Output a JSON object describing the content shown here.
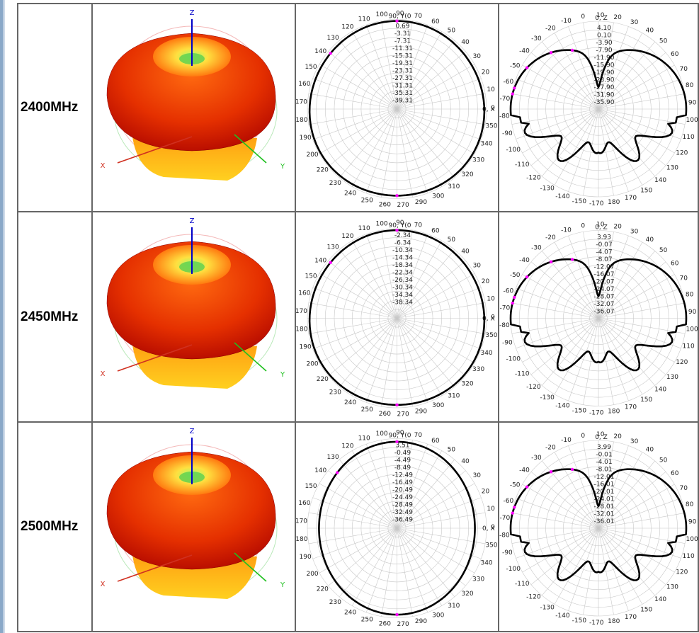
{
  "frequencies": [
    "2400MHz",
    "2450MHz",
    "2500MHz"
  ],
  "axis_letters": {
    "z": "Z",
    "x": "X",
    "y": "Y"
  },
  "colors": {
    "pattern_line": "#000000",
    "marker": "#ff00ff",
    "grid": "#c8c8c8",
    "lobe_dark": "#a80000",
    "lobe_mid": "#e53000",
    "lobe_light": "#ffd020",
    "z_axis": "#0000c8",
    "x_axis": "#d03020",
    "y_axis": "#20c020"
  },
  "chart_data": [
    {
      "type": "polar",
      "frequency": "2400MHz",
      "plane": "XY",
      "top_label": "90, Y(0",
      "side_label": "0, X",
      "angle_labels": [
        "110",
        "100",
        "90",
        "70",
        "60",
        "50",
        "40",
        "30",
        "20",
        "10",
        "0",
        "350",
        "340",
        "330",
        "320",
        "310",
        "300",
        "290",
        "270",
        "260",
        "250",
        "240",
        "230",
        "220",
        "200",
        "190",
        "180",
        "170",
        "160",
        "150",
        "140",
        "130",
        "120"
      ],
      "radial_labels": [
        "0.69",
        "-3.31",
        "-7.31",
        "-11.31",
        "-15.31",
        "-19.31",
        "-23.31",
        "-27.31",
        "-31.31",
        "-35.31",
        "-39.31"
      ],
      "pattern": "near-circular"
    },
    {
      "type": "polar",
      "frequency": "2400MHz",
      "plane": "XZ",
      "top_label": "0, Z",
      "angle_labels": [
        "-10",
        "0",
        "10",
        "20",
        "30",
        "40",
        "50",
        "60",
        "70",
        "80",
        "90",
        "100",
        "110",
        "120",
        "130",
        "140",
        "150",
        "170",
        "180",
        "-170",
        "-150",
        "-140",
        "-130",
        "-120",
        "-110",
        "-100",
        "-90",
        "-80",
        "-70",
        "-60",
        "-50",
        "-40",
        "-30",
        "-20"
      ],
      "radial_labels": [
        "4.10",
        "0.10",
        "-3.90",
        "-7.90",
        "-11.90",
        "-15.90",
        "-19.90",
        "-23.90",
        "-27.90",
        "-31.90",
        "-35.90"
      ],
      "pattern": "butterfly"
    },
    {
      "type": "polar",
      "frequency": "2450MHz",
      "plane": "XY",
      "top_label": "90, Y(0",
      "side_label": "0, X",
      "angle_labels": [
        "110",
        "100",
        "90",
        "70",
        "60",
        "50",
        "40",
        "30",
        "20",
        "10",
        "0",
        "350",
        "340",
        "330",
        "320",
        "310",
        "300",
        "290",
        "270",
        "260",
        "250",
        "240",
        "230",
        "220",
        "200",
        "190",
        "180",
        "170",
        "160",
        "150",
        "140",
        "130",
        "120"
      ],
      "radial_labels": [
        "-2.34",
        "-6.34",
        "-10.34",
        "-14.34",
        "-18.34",
        "-22.34",
        "-26.34",
        "-30.34",
        "-34.34",
        "-38.34"
      ],
      "pattern": "near-circular"
    },
    {
      "type": "polar",
      "frequency": "2450MHz",
      "plane": "XZ",
      "top_label": "0, Z",
      "angle_labels": [
        "-10",
        "0",
        "10",
        "20",
        "30",
        "40",
        "50",
        "60",
        "70",
        "80",
        "90",
        "100",
        "110",
        "120",
        "130",
        "140",
        "150",
        "170",
        "180",
        "-170",
        "-150",
        "-140",
        "-130",
        "-120",
        "-110",
        "-100",
        "-90",
        "-80",
        "-70",
        "-60",
        "-50",
        "-40",
        "-30",
        "-20"
      ],
      "radial_labels": [
        "3.93",
        "-0.07",
        "-4.07",
        "-8.07",
        "-12.07",
        "-16.07",
        "-20.07",
        "-24.07",
        "-28.07",
        "-32.07",
        "-36.07"
      ],
      "pattern": "butterfly"
    },
    {
      "type": "polar",
      "frequency": "2500MHz",
      "plane": "XY",
      "top_label": "90, Y(0",
      "side_label": "0, X",
      "angle_labels": [
        "110",
        "100",
        "90",
        "70",
        "60",
        "50",
        "40",
        "30",
        "20",
        "10",
        "0",
        "350",
        "340",
        "330",
        "320",
        "310",
        "300",
        "290",
        "270",
        "260",
        "250",
        "240",
        "230",
        "220",
        "200",
        "190",
        "180",
        "170",
        "160",
        "150",
        "140",
        "130",
        "120"
      ],
      "radial_labels": [
        "3.51",
        "-0.49",
        "-4.49",
        "-8.49",
        "-12.49",
        "-16.49",
        "-20.49",
        "-24.49",
        "-28.49",
        "-32.49",
        "-36.49"
      ],
      "pattern": "oval"
    },
    {
      "type": "polar",
      "frequency": "2500MHz",
      "plane": "XZ",
      "top_label": "0, Z",
      "angle_labels": [
        "-10",
        "0",
        "10",
        "20",
        "30",
        "40",
        "50",
        "60",
        "70",
        "80",
        "90",
        "100",
        "110",
        "120",
        "130",
        "140",
        "150",
        "170",
        "180",
        "-170",
        "-150",
        "-140",
        "-130",
        "-120",
        "-110",
        "-100",
        "-90",
        "-80",
        "-70",
        "-60",
        "-50",
        "-40",
        "-30",
        "-20"
      ],
      "radial_labels": [
        "3.99",
        "-0.01",
        "-4.01",
        "-8.01",
        "-12.01",
        "-16.01",
        "-20.01",
        "-24.01",
        "-28.01",
        "-32.01",
        "-36.01"
      ],
      "pattern": "butterfly"
    }
  ]
}
